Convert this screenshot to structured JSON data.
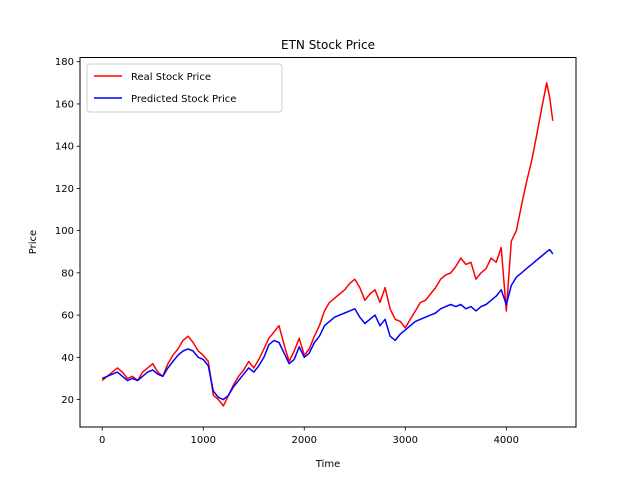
{
  "chart_data": {
    "type": "line",
    "title": "ETN Stock Price",
    "xlabel": "Time",
    "ylabel": "Price",
    "xlim": [
      -220,
      4690
    ],
    "ylim": [
      7,
      182
    ],
    "xticks": [
      0,
      1000,
      2000,
      3000,
      4000
    ],
    "yticks": [
      20,
      40,
      60,
      80,
      100,
      120,
      140,
      160,
      180
    ],
    "grid": false,
    "legend_position": "top-left",
    "series": [
      {
        "name": "Real Stock Price",
        "color": "#ff0000",
        "x": [
          0,
          50,
          100,
          150,
          200,
          250,
          300,
          350,
          400,
          450,
          500,
          550,
          600,
          650,
          700,
          750,
          800,
          850,
          900,
          950,
          1000,
          1050,
          1100,
          1150,
          1200,
          1250,
          1300,
          1350,
          1400,
          1450,
          1500,
          1550,
          1600,
          1650,
          1700,
          1750,
          1800,
          1850,
          1900,
          1950,
          2000,
          2050,
          2100,
          2150,
          2200,
          2250,
          2300,
          2350,
          2400,
          2450,
          2500,
          2550,
          2600,
          2650,
          2700,
          2750,
          2800,
          2850,
          2900,
          2950,
          3000,
          3050,
          3100,
          3150,
          3200,
          3250,
          3300,
          3350,
          3400,
          3450,
          3500,
          3550,
          3600,
          3650,
          3700,
          3750,
          3800,
          3850,
          3900,
          3950,
          4000,
          4050,
          4100,
          4150,
          4200,
          4250,
          4300,
          4350,
          4400,
          4430,
          4460
        ],
        "y": [
          29,
          31,
          33,
          35,
          33,
          30,
          31,
          29,
          33,
          35,
          37,
          33,
          31,
          37,
          41,
          44,
          48,
          50,
          47,
          43,
          41,
          38,
          22,
          20,
          17,
          22,
          27,
          31,
          34,
          38,
          35,
          39,
          44,
          49,
          52,
          55,
          46,
          38,
          43,
          49,
          41,
          44,
          50,
          55,
          62,
          66,
          68,
          70,
          72,
          75,
          77,
          73,
          67,
          70,
          72,
          66,
          73,
          63,
          58,
          57,
          54,
          58,
          62,
          66,
          67,
          70,
          73,
          77,
          79,
          80,
          83,
          87,
          84,
          85,
          77,
          80,
          82,
          87,
          85,
          92,
          62,
          95,
          100,
          112,
          123,
          133,
          145,
          158,
          170,
          163,
          152
        ]
      },
      {
        "name": "Predicted Stock Price",
        "color": "#0000ff",
        "x": [
          0,
          50,
          100,
          150,
          200,
          250,
          300,
          350,
          400,
          450,
          500,
          550,
          600,
          650,
          700,
          750,
          800,
          850,
          900,
          950,
          1000,
          1050,
          1100,
          1150,
          1200,
          1250,
          1300,
          1350,
          1400,
          1450,
          1500,
          1550,
          1600,
          1650,
          1700,
          1750,
          1800,
          1850,
          1900,
          1950,
          2000,
          2050,
          2100,
          2150,
          2200,
          2250,
          2300,
          2350,
          2400,
          2450,
          2500,
          2550,
          2600,
          2650,
          2700,
          2750,
          2800,
          2850,
          2900,
          2950,
          3000,
          3050,
          3100,
          3150,
          3200,
          3250,
          3300,
          3350,
          3400,
          3450,
          3500,
          3550,
          3600,
          3650,
          3700,
          3750,
          3800,
          3850,
          3900,
          3950,
          4000,
          4050,
          4100,
          4150,
          4200,
          4250,
          4300,
          4350,
          4400,
          4430,
          4460
        ],
        "y": [
          30,
          31,
          32,
          33,
          31,
          29,
          30,
          29,
          31,
          33,
          34,
          32,
          31,
          35,
          38,
          41,
          43,
          44,
          43,
          40,
          39,
          36,
          24,
          21,
          20,
          22,
          26,
          29,
          32,
          35,
          33,
          36,
          40,
          46,
          48,
          47,
          42,
          37,
          39,
          45,
          40,
          42,
          47,
          50,
          55,
          57,
          59,
          60,
          61,
          62,
          63,
          59,
          56,
          58,
          60,
          55,
          58,
          50,
          48,
          51,
          53,
          55,
          57,
          58,
          59,
          60,
          61,
          63,
          64,
          65,
          64,
          65,
          63,
          64,
          62,
          64,
          65,
          67,
          69,
          72,
          65,
          74,
          78,
          80,
          82,
          84,
          86,
          88,
          90,
          91,
          89
        ]
      }
    ]
  }
}
